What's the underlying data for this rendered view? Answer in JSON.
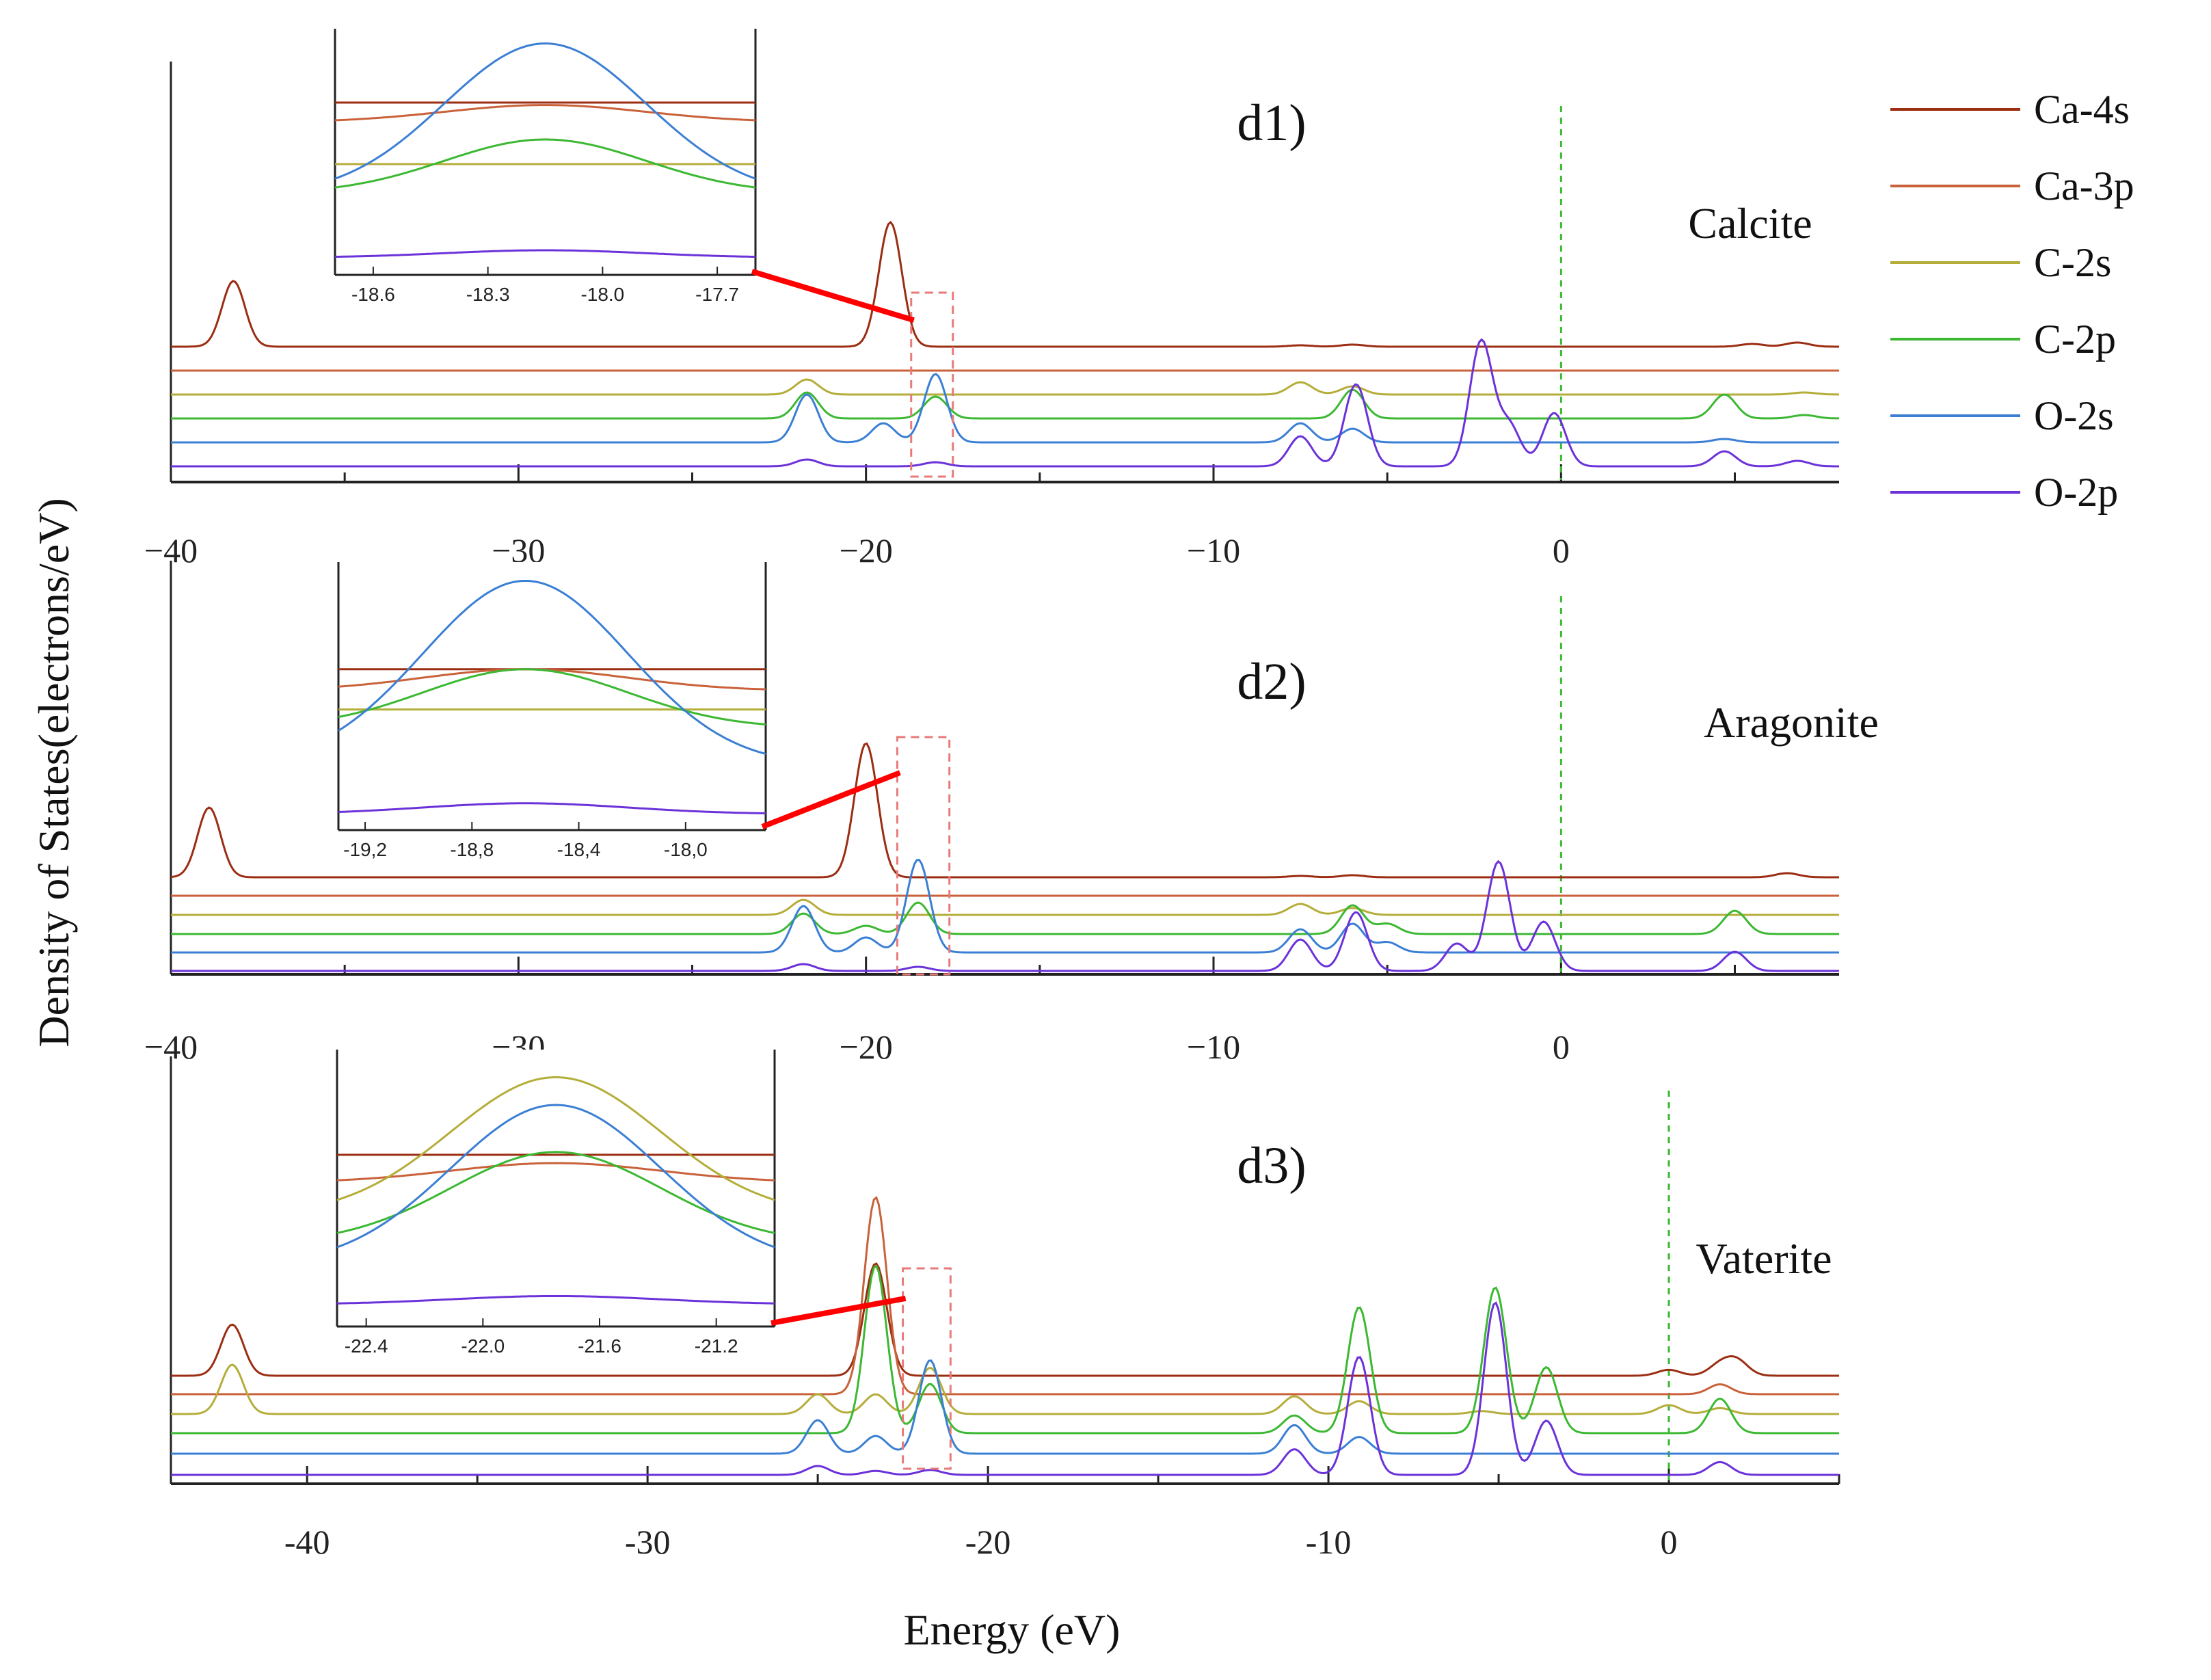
{
  "chart_data": {
    "type": "line",
    "ylabel": "Density of States(electrons/eV)",
    "xlabel": "Energy (eV)",
    "legend": [
      {
        "name": "Ca-4s",
        "color": "#9b2d12"
      },
      {
        "name": "Ca-3p",
        "color": "#c9623b"
      },
      {
        "name": "C-2s",
        "color": "#b5ad3a"
      },
      {
        "name": "C-2p",
        "color": "#3cb832"
      },
      {
        "name": "O-2s",
        "color": "#3b7fd4"
      },
      {
        "name": "O-2p",
        "color": "#6c32d9"
      }
    ],
    "panels": [
      {
        "label": "d1)",
        "mineral": "Calcite",
        "xlim": [
          -40,
          8
        ],
        "fermi": 0,
        "xticks": [
          -40,
          -30,
          -20,
          -10,
          0
        ],
        "xtick_labels": [
          "−40",
          "−30",
          "−20",
          "−10",
          "0"
        ],
        "zoom_box": [
          -18.7,
          -17.5
        ],
        "inset": {
          "xlim": [
            -18.7,
            -17.6
          ],
          "center": -18.15,
          "ticks": [
            -18.6,
            -18.3,
            -18.0,
            -17.7
          ],
          "tick_labels": [
            "-18.6",
            "-18.3",
            "-18.0",
            "-17.7"
          ],
          "curves": [
            {
              "name": "Ca-4s",
              "base": 0.7,
              "amp": 0.0
            },
            {
              "name": "Ca-3p",
              "base": 0.62,
              "amp": 0.07
            },
            {
              "name": "C-2s",
              "base": 0.45,
              "amp": 0.0
            },
            {
              "name": "C-2p",
              "base": 0.33,
              "amp": 0.22
            },
            {
              "name": "O-2s",
              "base": 0.32,
              "amp": 0.62
            },
            {
              "name": "O-2p",
              "base": 0.07,
              "amp": 0.03
            }
          ]
        },
        "series": [
          {
            "name": "Ca-4s",
            "peaks": [
              [
                -38.2,
                96
              ],
              [
                -19.3,
                182
              ],
              [
                -7.5,
                2
              ],
              [
                -6.0,
                3
              ],
              [
                5.5,
                4
              ],
              [
                6.8,
                6
              ]
            ]
          },
          {
            "name": "Ca-3p",
            "peaks": []
          },
          {
            "name": "C-2s",
            "peaks": [
              [
                -21.7,
                22
              ],
              [
                -7.5,
                18
              ],
              [
                -6.0,
                12
              ],
              [
                7.0,
                3
              ]
            ]
          },
          {
            "name": "C-2p",
            "peaks": [
              [
                -21.7,
                38
              ],
              [
                -18.0,
                32
              ],
              [
                -6.0,
                42
              ],
              [
                4.7,
                35
              ],
              [
                7.0,
                5
              ]
            ]
          },
          {
            "name": "O-2s",
            "peaks": [
              [
                -21.7,
                70
              ],
              [
                -19.5,
                28
              ],
              [
                -18.0,
                100
              ],
              [
                -7.5,
                28
              ],
              [
                -6.0,
                20
              ],
              [
                4.7,
                5
              ]
            ]
          },
          {
            "name": "O-2p",
            "peaks": [
              [
                -21.7,
                10
              ],
              [
                -18.0,
                6
              ],
              [
                -7.5,
                44
              ],
              [
                -5.9,
                120
              ],
              [
                -2.3,
                182
              ],
              [
                -1.5,
                60
              ],
              [
                -0.2,
                78
              ],
              [
                4.7,
                22
              ],
              [
                6.8,
                8
              ]
            ]
          }
        ]
      },
      {
        "label": "d2)",
        "mineral": "Aragonite",
        "xlim": [
          -40,
          8
        ],
        "fermi": 0,
        "xticks": [
          -40,
          -30,
          -20,
          -10,
          0
        ],
        "xtick_labels": [
          "−40",
          "−30",
          "−20",
          "−10",
          "0"
        ],
        "zoom_box": [
          -19.1,
          -17.6
        ],
        "inset": {
          "xlim": [
            -19.3,
            -17.7
          ],
          "center": -18.6,
          "ticks": [
            -19.2,
            -18.8,
            -18.4,
            -18.0
          ],
          "tick_labels": [
            "-19,2",
            "-18,8",
            "-18,4",
            "-18,0"
          ],
          "curves": [
            {
              "name": "Ca-4s",
              "base": 0.6,
              "amp": 0.0
            },
            {
              "name": "Ca-3p",
              "base": 0.52,
              "amp": 0.08
            },
            {
              "name": "C-2s",
              "base": 0.45,
              "amp": 0.0
            },
            {
              "name": "C-2p",
              "base": 0.38,
              "amp": 0.22
            },
            {
              "name": "O-2s",
              "base": 0.24,
              "amp": 0.69
            },
            {
              "name": "O-2p",
              "base": 0.06,
              "amp": 0.04
            }
          ]
        },
        "series": [
          {
            "name": "Ca-4s",
            "peaks": [
              [
                -38.9,
                102
              ],
              [
                -20.0,
                196
              ],
              [
                -7.5,
                2
              ],
              [
                -6.0,
                3
              ],
              [
                6.5,
                6
              ]
            ]
          },
          {
            "name": "Ca-3p",
            "peaks": []
          },
          {
            "name": "C-2s",
            "peaks": [
              [
                -21.8,
                22
              ],
              [
                -7.5,
                16
              ],
              [
                -6.0,
                10
              ]
            ]
          },
          {
            "name": "C-2p",
            "peaks": [
              [
                -21.8,
                30
              ],
              [
                -20.0,
                12
              ],
              [
                -18.5,
                46
              ],
              [
                -6.0,
                42
              ],
              [
                -5.0,
                15
              ],
              [
                5.0,
                34
              ]
            ]
          },
          {
            "name": "O-2s",
            "peaks": [
              [
                -21.8,
                68
              ],
              [
                -20.0,
                22
              ],
              [
                -18.5,
                136
              ],
              [
                -7.5,
                34
              ],
              [
                -6.0,
                42
              ],
              [
                -5.0,
                15
              ]
            ]
          },
          {
            "name": "O-2p",
            "peaks": [
              [
                -21.8,
                10
              ],
              [
                -18.5,
                6
              ],
              [
                -7.5,
                46
              ],
              [
                -5.9,
                86
              ],
              [
                -1.8,
                160
              ],
              [
                -3.0,
                40
              ],
              [
                -0.5,
                72
              ],
              [
                5.0,
                28
              ]
            ]
          }
        ]
      },
      {
        "label": "d3)",
        "mineral": "Vaterite",
        "xlim": [
          -44,
          5
        ],
        "fermi": 0,
        "xticks": [
          -40,
          -30,
          -20,
          -10,
          0
        ],
        "xtick_labels": [
          "-40",
          "-30",
          "-20",
          "-10",
          "0"
        ],
        "zoom_box": [
          -22.5,
          -21.1
        ],
        "inset": {
          "xlim": [
            -22.5,
            -21.0
          ],
          "center": -21.75,
          "ticks": [
            -22.4,
            -22.0,
            -21.6,
            -21.2
          ],
          "tick_labels": [
            "-22.4",
            "-22.0",
            "-21.6",
            "-21.2"
          ],
          "curves": [
            {
              "name": "Ca-4s",
              "base": 0.62,
              "amp": 0.0
            },
            {
              "name": "Ca-3p",
              "base": 0.52,
              "amp": 0.07
            },
            {
              "name": "C-2s",
              "base": 0.4,
              "amp": 0.5
            },
            {
              "name": "C-2p",
              "base": 0.3,
              "amp": 0.33
            },
            {
              "name": "O-2s",
              "base": 0.22,
              "amp": 0.58
            },
            {
              "name": "O-2p",
              "base": 0.08,
              "amp": 0.03
            }
          ]
        },
        "series": [
          {
            "name": "Ca-4s",
            "peaks": [
              [
                -42.2,
                104
              ],
              [
                -23.3,
                228
              ],
              [
                0.0,
                12
              ],
              [
                1.5,
                22
              ],
              [
                2.0,
                30
              ]
            ]
          },
          {
            "name": "Ca-3p",
            "peaks": [
              [
                -23.3,
                400
              ],
              [
                1.5,
                20
              ]
            ]
          },
          {
            "name": "C-2s",
            "peaks": [
              [
                -42.2,
                100
              ],
              [
                -25.0,
                40
              ],
              [
                -23.3,
                40
              ],
              [
                -21.7,
                94
              ],
              [
                -11.0,
                36
              ],
              [
                -9.1,
                26
              ],
              [
                -5.5,
                6
              ],
              [
                0.0,
                18
              ],
              [
                1.5,
                12
              ]
            ]
          },
          {
            "name": "C-2p",
            "peaks": [
              [
                -23.3,
                340
              ],
              [
                -21.7,
                100
              ],
              [
                -11.0,
                36
              ],
              [
                -9.1,
                256
              ],
              [
                -5.1,
                296
              ],
              [
                -3.6,
                134
              ],
              [
                1.5,
                70
              ]
            ]
          },
          {
            "name": "O-2s",
            "peaks": [
              [
                -25.0,
                68
              ],
              [
                -23.3,
                36
              ],
              [
                -21.7,
                190
              ],
              [
                -11.0,
                58
              ],
              [
                -9.1,
                34
              ]
            ]
          },
          {
            "name": "O-2p",
            "peaks": [
              [
                -25.0,
                18
              ],
              [
                -23.3,
                8
              ],
              [
                -21.7,
                10
              ],
              [
                -11.0,
                52
              ],
              [
                -9.1,
                240
              ],
              [
                -5.1,
                350
              ],
              [
                -3.6,
                110
              ],
              [
                1.5,
                26
              ]
            ]
          }
        ]
      }
    ]
  }
}
